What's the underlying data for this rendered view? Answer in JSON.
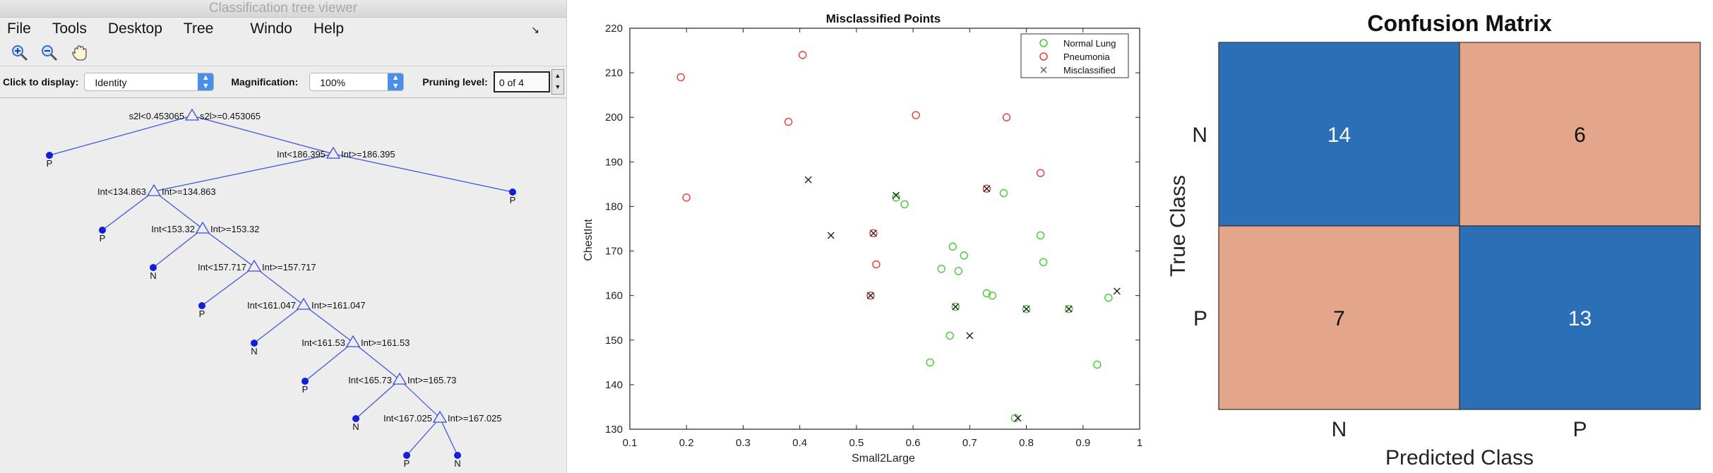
{
  "tree_viewer": {
    "window_title": "Classification tree viewer",
    "menu": [
      "File",
      "Tools",
      "Desktop",
      "Tree",
      "Windo",
      "Help"
    ],
    "toolbar_icons": [
      "zoom-in-icon",
      "zoom-out-icon",
      "pan-hand-icon"
    ],
    "click_to_display_label": "Click to display:",
    "click_to_display_value": "Identity",
    "magnification_label": "Magnification:",
    "magnification_value": "100%",
    "pruning_label": "Pruning level:",
    "pruning_value": "0 of 4",
    "line_color": "#3a4fe0",
    "leaf_color": "#1020d8",
    "nodes": [
      {
        "id": "n0",
        "left": "s2l<0.453065",
        "right": "s2l>=0.453065"
      },
      {
        "id": "n1",
        "left": "Int<186.395",
        "right": "Int>=186.395"
      },
      {
        "id": "n2",
        "left": "Int<134.863",
        "right": "Int>=134.863"
      },
      {
        "id": "n3",
        "left": "Int<153.32",
        "right": "Int>=153.32"
      },
      {
        "id": "n4",
        "left": "Int<157.717",
        "right": "Int>=157.717"
      },
      {
        "id": "n5",
        "left": "Int<161.047",
        "right": "Int>=161.047"
      },
      {
        "id": "n6",
        "left": "Int<161.53",
        "right": "Int>=161.53"
      },
      {
        "id": "n7",
        "left": "Int<165.73",
        "right": "Int>=165.73"
      },
      {
        "id": "n8",
        "left": "Int<167.025",
        "right": "Int>=167.025"
      }
    ],
    "leaves": [
      {
        "id": "l0",
        "label": "P"
      },
      {
        "id": "l1",
        "label": "P"
      },
      {
        "id": "l2",
        "label": "P"
      },
      {
        "id": "l3",
        "label": "N"
      },
      {
        "id": "l4",
        "label": "P"
      },
      {
        "id": "l5",
        "label": "N"
      },
      {
        "id": "l6",
        "label": "P"
      },
      {
        "id": "l7",
        "label": "N"
      },
      {
        "id": "l8",
        "label": "P"
      },
      {
        "id": "l9",
        "label": "N"
      }
    ]
  },
  "chart_data": [
    {
      "type": "scatter",
      "title": "Misclassified Points",
      "xlabel": "Small2Large",
      "ylabel": "ChestInt",
      "xlim": [
        0.1,
        1
      ],
      "ylim": [
        130,
        220
      ],
      "xticks": [
        "0.1",
        "0.2",
        "0.3",
        "0.4",
        "0.5",
        "0.6",
        "0.7",
        "0.8",
        "0.9",
        "1"
      ],
      "yticks": [
        "130",
        "140",
        "150",
        "160",
        "170",
        "180",
        "190",
        "200",
        "210",
        "220"
      ],
      "legend_position": "top-right",
      "series": [
        {
          "name": "Normal Lung",
          "marker": "circle",
          "color": "#44cc33",
          "points": [
            [
              0.57,
              182
            ],
            [
              0.585,
              180.5
            ],
            [
              0.63,
              145
            ],
            [
              0.65,
              166
            ],
            [
              0.665,
              151
            ],
            [
              0.67,
              171
            ],
            [
              0.68,
              165.5
            ],
            [
              0.69,
              169
            ],
            [
              0.675,
              157.5
            ],
            [
              0.73,
              160.5
            ],
            [
              0.74,
              160
            ],
            [
              0.76,
              183
            ],
            [
              0.78,
              132.5
            ],
            [
              0.8,
              157
            ],
            [
              0.825,
              173.5
            ],
            [
              0.83,
              167.5
            ],
            [
              0.875,
              157
            ],
            [
              0.925,
              144.5
            ],
            [
              0.945,
              159.5
            ]
          ]
        },
        {
          "name": "Pneumonia",
          "marker": "circle",
          "color": "#e83a3a",
          "points": [
            [
              0.19,
              209
            ],
            [
              0.2,
              182
            ],
            [
              0.38,
              199
            ],
            [
              0.405,
              214
            ],
            [
              0.525,
              160
            ],
            [
              0.53,
              174
            ],
            [
              0.535,
              167
            ],
            [
              0.605,
              200.5
            ],
            [
              0.73,
              184
            ],
            [
              0.765,
              200
            ],
            [
              0.825,
              187.5
            ]
          ]
        },
        {
          "name": "Misclassified",
          "marker": "x",
          "color": "#222222",
          "points": [
            [
              0.415,
              186
            ],
            [
              0.455,
              173.5
            ],
            [
              0.525,
              160
            ],
            [
              0.53,
              174
            ],
            [
              0.57,
              182.5
            ],
            [
              0.675,
              157.5
            ],
            [
              0.7,
              151
            ],
            [
              0.73,
              184
            ],
            [
              0.785,
              132.5
            ],
            [
              0.8,
              157
            ],
            [
              0.875,
              157
            ],
            [
              0.96,
              161
            ]
          ]
        }
      ]
    },
    {
      "type": "heatmap",
      "title": "Confusion Matrix",
      "xlabel": "Predicted Class",
      "ylabel": "True Class",
      "rows": [
        "N",
        "P"
      ],
      "cols": [
        "N",
        "P"
      ],
      "values": [
        [
          14,
          6
        ],
        [
          7,
          13
        ]
      ],
      "colors": {
        "correct": "#2b6fb6",
        "incorrect": "#e3a68b"
      }
    }
  ]
}
